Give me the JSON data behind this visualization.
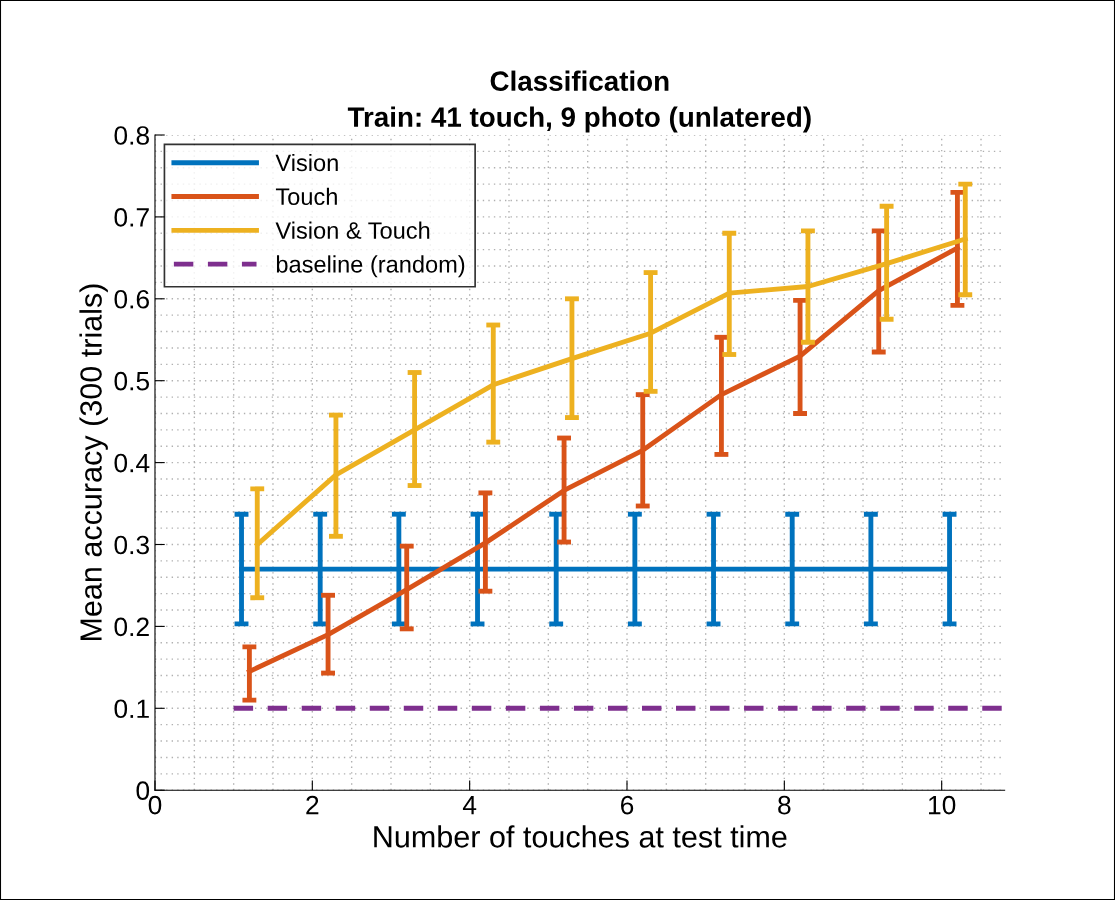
{
  "chart_data": {
    "type": "line",
    "title": "Classification",
    "subtitle": "Train: 41 touch, 9 photo (unlatered)",
    "xlabel": "Number of touches at test time",
    "ylabel": "Mean accuracy (300 trials)",
    "xlim": [
      0,
      10.8
    ],
    "ylim": [
      0,
      0.8
    ],
    "xticks": [
      0,
      2,
      4,
      6,
      8,
      10
    ],
    "yticks": [
      0,
      0.1,
      0.2,
      0.3,
      0.4,
      0.5,
      0.6,
      0.7,
      0.8
    ],
    "grid": true,
    "legend": "top left",
    "marker": "none",
    "series": [
      {
        "name": "Vision",
        "color": "#0072bd",
        "x": [
          1.1,
          2.1,
          3.1,
          4.1,
          5.1,
          6.1,
          7.1,
          8.1,
          9.1,
          10.1
        ],
        "values": [
          0.27,
          0.27,
          0.27,
          0.27,
          0.27,
          0.27,
          0.27,
          0.27,
          0.27,
          0.27
        ],
        "errors": [
          [
            0.203,
            0.337
          ],
          [
            0.203,
            0.337
          ],
          [
            0.203,
            0.337
          ],
          [
            0.203,
            0.337
          ],
          [
            0.203,
            0.337
          ],
          [
            0.203,
            0.337
          ],
          [
            0.203,
            0.337
          ],
          [
            0.203,
            0.337
          ],
          [
            0.203,
            0.337
          ],
          [
            0.203,
            0.337
          ]
        ]
      },
      {
        "name": "Touch",
        "color": "#d95319",
        "x": [
          1.2,
          2.2,
          3.2,
          4.2,
          5.2,
          6.2,
          7.2,
          8.2,
          9.2,
          10.2
        ],
        "values": [
          0.145,
          0.19,
          0.245,
          0.302,
          0.366,
          0.415,
          0.483,
          0.53,
          0.61,
          0.662
        ],
        "errors": [
          [
            0.11,
            0.175
          ],
          [
            0.143,
            0.238
          ],
          [
            0.197,
            0.298
          ],
          [
            0.243,
            0.363
          ],
          [
            0.303,
            0.43
          ],
          [
            0.347,
            0.483
          ],
          [
            0.41,
            0.553
          ],
          [
            0.46,
            0.598
          ],
          [
            0.535,
            0.683
          ],
          [
            0.592,
            0.73
          ]
        ]
      },
      {
        "name": "Vision & Touch",
        "color": "#edb120",
        "x": [
          1.3,
          2.3,
          3.3,
          4.3,
          5.3,
          6.3,
          7.3,
          8.3,
          9.3,
          10.3
        ],
        "values": [
          0.3,
          0.385,
          0.44,
          0.495,
          0.527,
          0.558,
          0.607,
          0.615,
          0.643,
          0.673
        ],
        "errors": [
          [
            0.235,
            0.368
          ],
          [
            0.31,
            0.458
          ],
          [
            0.372,
            0.51
          ],
          [
            0.425,
            0.568
          ],
          [
            0.455,
            0.6
          ],
          [
            0.487,
            0.632
          ],
          [
            0.532,
            0.68
          ],
          [
            0.547,
            0.683
          ],
          [
            0.575,
            0.713
          ],
          [
            0.605,
            0.74
          ]
        ]
      },
      {
        "name": "baseline (random)",
        "color": "#7e2f8e",
        "line_style": "dashed",
        "x": [
          1,
          10.8
        ],
        "values": [
          0.1,
          0.1
        ]
      }
    ]
  }
}
